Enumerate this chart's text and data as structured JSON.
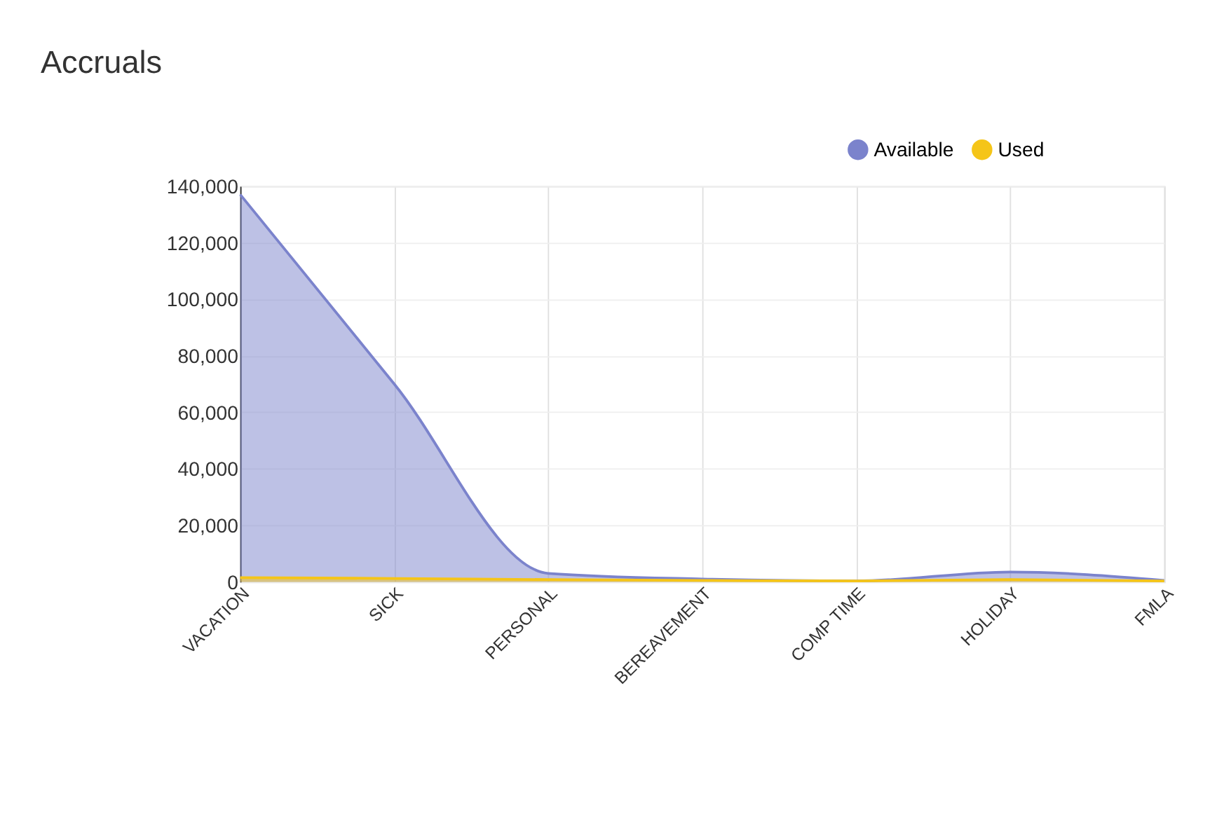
{
  "chart_data": {
    "type": "area",
    "title": "Accruals",
    "categories": [
      "VACATION",
      "SICK",
      "PERSONAL",
      "BEREAVEMENT",
      "COMP TIME",
      "HOLIDAY",
      "FMLA"
    ],
    "series": [
      {
        "name": "Available",
        "color": "#7b83cc",
        "values": [
          137000,
          70000,
          3000,
          1000,
          300,
          3500,
          500
        ]
      },
      {
        "name": "Used",
        "color": "#f5c518",
        "values": [
          1500,
          1200,
          800,
          500,
          300,
          800,
          300
        ]
      }
    ],
    "ylim": [
      0,
      140000
    ],
    "yticks": [
      0,
      {
        "value": 20000,
        "label": "20,000"
      },
      {
        "value": 40000,
        "label": "40,000"
      },
      {
        "value": 60000,
        "label": "60,000"
      },
      {
        "value": 80000,
        "label": "80,000"
      },
      {
        "value": 100000,
        "label": "100,000"
      },
      {
        "value": 120000,
        "label": "120,000"
      },
      {
        "value": 140000,
        "label": "140,000"
      }
    ],
    "grid": true,
    "legend": "top right"
  }
}
